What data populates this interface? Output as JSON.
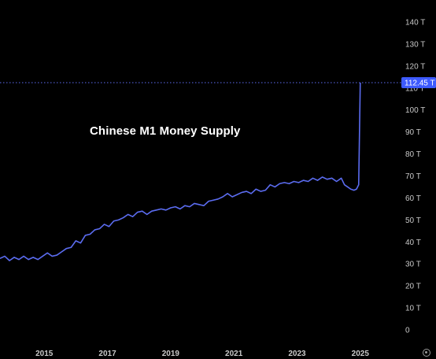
{
  "chart_data": {
    "type": "line",
    "title": "",
    "xlabel": "",
    "ylabel": "",
    "annotation": "Chinese M1 Money Supply",
    "unit_suffix": "T",
    "xlim": [
      2013.6,
      2026.5
    ],
    "ylim": [
      -2,
      140
    ],
    "grid": false,
    "legend": "none",
    "y_ticks": [
      {
        "value": 0,
        "label": "0"
      },
      {
        "value": 10,
        "label": "10 T"
      },
      {
        "value": 20,
        "label": "20 T"
      },
      {
        "value": 30,
        "label": "30 T"
      },
      {
        "value": 40,
        "label": "40 T"
      },
      {
        "value": 50,
        "label": "50 T"
      },
      {
        "value": 60,
        "label": "60 T"
      },
      {
        "value": 70,
        "label": "70 T"
      },
      {
        "value": 80,
        "label": "80 T"
      },
      {
        "value": 90,
        "label": "90 T"
      },
      {
        "value": 100,
        "label": "100 T"
      },
      {
        "value": 110,
        "label": "110 T"
      },
      {
        "value": 120,
        "label": "120 T"
      },
      {
        "value": 130,
        "label": "130 T"
      },
      {
        "value": 140,
        "label": "140 T"
      }
    ],
    "x_ticks": [
      {
        "value": 2015,
        "label": "2015"
      },
      {
        "value": 2017,
        "label": "2017"
      },
      {
        "value": 2019,
        "label": "2019"
      },
      {
        "value": 2021,
        "label": "2021"
      },
      {
        "value": 2023,
        "label": "2023"
      },
      {
        "value": 2025,
        "label": "2025"
      }
    ],
    "last_value": {
      "value": 112.45,
      "label": "112.45 T"
    },
    "colors": {
      "background": "#000000",
      "line": "#5b6cf0",
      "price_label_bg": "#3d5afe",
      "ticks": "#c9c9c9"
    },
    "series": [
      {
        "x": [
          2013.6,
          2013.75,
          2013.9,
          2014.05,
          2014.2,
          2014.35,
          2014.5,
          2014.65,
          2014.8,
          2014.95,
          2015.1,
          2015.25,
          2015.4,
          2015.55,
          2015.7,
          2015.85,
          2016.0,
          2016.15,
          2016.3,
          2016.45,
          2016.6,
          2016.75,
          2016.9,
          2017.05,
          2017.2,
          2017.35,
          2017.5,
          2017.65,
          2017.8,
          2017.95,
          2018.1,
          2018.25,
          2018.4,
          2018.55,
          2018.7,
          2018.85,
          2019.0,
          2019.15,
          2019.3,
          2019.45,
          2019.6,
          2019.75,
          2019.9,
          2020.05,
          2020.2,
          2020.35,
          2020.5,
          2020.65,
          2020.8,
          2020.95,
          2021.1,
          2021.25,
          2021.4,
          2021.55,
          2021.7,
          2021.85,
          2022.0,
          2022.15,
          2022.3,
          2022.45,
          2022.6,
          2022.75,
          2022.9,
          2023.05,
          2023.2,
          2023.35,
          2023.5,
          2023.65,
          2023.8,
          2023.95,
          2024.1,
          2024.25,
          2024.4,
          2024.5,
          2024.6,
          2024.7,
          2024.8,
          2024.88,
          2024.95,
          2025.0
        ],
        "values": [
          32.5,
          33.5,
          31.5,
          33.0,
          32.0,
          33.5,
          32.0,
          33.0,
          32.0,
          33.5,
          35.0,
          33.5,
          34.0,
          35.5,
          37.0,
          37.5,
          40.5,
          39.5,
          43.0,
          43.5,
          45.5,
          46.0,
          48.0,
          47.0,
          49.5,
          50.0,
          51.0,
          52.5,
          51.5,
          53.5,
          54.0,
          52.5,
          54.0,
          54.5,
          55.0,
          54.5,
          55.5,
          56.0,
          55.0,
          56.5,
          56.0,
          57.5,
          57.0,
          56.5,
          58.5,
          59.0,
          59.5,
          60.5,
          62.0,
          60.5,
          61.5,
          62.5,
          63.0,
          62.0,
          64.0,
          63.0,
          63.5,
          66.0,
          65.0,
          66.5,
          67.0,
          66.5,
          67.5,
          67.0,
          68.0,
          67.5,
          69.0,
          68.0,
          69.5,
          68.5,
          69.0,
          67.5,
          69.0,
          66.0,
          65.0,
          64.0,
          63.5,
          64.0,
          66.0,
          112.45
        ]
      }
    ]
  }
}
